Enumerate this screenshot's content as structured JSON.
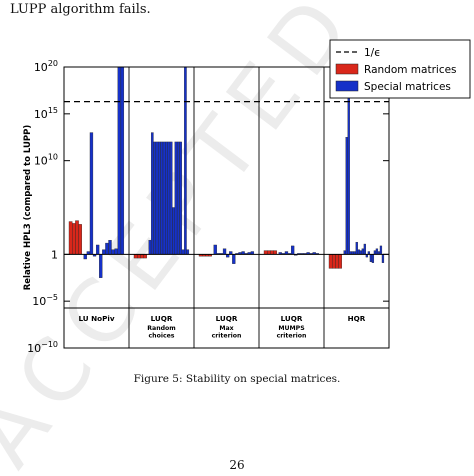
{
  "top_text": "LUPP algorithm fails.",
  "caption": "Figure 5: Stability on special matrices.",
  "page_number": "26",
  "watermark": "ACCEPTED MANUSCRIPT",
  "colors": {
    "random": "#d9271b",
    "special": "#1631c8",
    "threshold": "#000000"
  },
  "chart_data": {
    "type": "bar",
    "ylabel": "Relative HPL3 (compared to LUPP)",
    "yscale": "log",
    "ylim_exp": [
      -10,
      20
    ],
    "yticks": [
      {
        "exp": -10,
        "base": "10",
        "power": "−10"
      },
      {
        "exp": -5,
        "base": "10",
        "power": "−5"
      },
      {
        "exp": 0,
        "base": "1",
        "power": ""
      },
      {
        "exp": 10,
        "base": "10",
        "power": "10"
      },
      {
        "exp": 15,
        "base": "10",
        "power": "15"
      },
      {
        "exp": 20,
        "base": "10",
        "power": "20"
      }
    ],
    "threshold": {
      "label": "1/ϵ",
      "log10": 16.3
    },
    "legend": {
      "position": "top-right",
      "entries": [
        {
          "label": "1/ϵ",
          "style": "dashed-line"
        },
        {
          "label": "Random matrices",
          "color_key": "random"
        },
        {
          "label": "Special matrices",
          "color_key": "special"
        }
      ]
    },
    "groups": [
      {
        "label": "LU NoPiv",
        "sub": [],
        "random_log10": [
          3.5,
          3.3,
          3.6,
          3.2
        ],
        "special_log10": [
          -0.5,
          0.3,
          13.0,
          -0.2,
          1.0,
          -2.5,
          0.5,
          1.2,
          1.5,
          0.5,
          0.6,
          20,
          20
        ]
      },
      {
        "label": "LUQR",
        "sub": [
          "Random",
          "choices"
        ],
        "random_log10": [
          -0.4,
          -0.4,
          -0.4,
          -0.4
        ],
        "special_log10": [
          1.5,
          13.0,
          12.0,
          12.0,
          12.0,
          12.0,
          12.0,
          12.0,
          12.0,
          12.0,
          5.0,
          12.0,
          12.0,
          12.0,
          0.5,
          20,
          0.5
        ]
      },
      {
        "label": "LUQR",
        "sub": [
          "Max",
          "criterion"
        ],
        "random_log10": [
          -0.2,
          -0.2,
          -0.2,
          -0.2
        ],
        "special_log10": [
          1.0,
          0.1,
          0.1,
          0.6,
          -0.3,
          0.3,
          -1.0,
          0.1,
          0.2,
          0.3,
          0.1,
          0.2,
          0.3
        ]
      },
      {
        "label": "LUQR",
        "sub": [
          "MUMPS",
          "criterion"
        ],
        "random_log10": [
          0.4,
          0.4,
          0.4,
          0.4
        ],
        "special_log10": [
          0.2,
          0.1,
          0.3,
          0.1,
          0.9,
          0.0,
          0.1,
          0.1,
          0.1,
          0.2,
          0.1,
          0.2,
          0.1
        ]
      },
      {
        "label": "HQR",
        "sub": [],
        "random_log10": [
          -1.5,
          -1.5,
          -1.5,
          -1.5
        ],
        "special_log10": [
          0.4,
          12.5,
          20,
          0.3,
          0.3,
          0.3,
          1.3,
          0.5,
          0.4,
          0.6,
          1.1,
          -0.3,
          0.3,
          -0.8,
          -0.9,
          0.4,
          0.6,
          0.3,
          0.9,
          -0.9
        ]
      }
    ]
  }
}
